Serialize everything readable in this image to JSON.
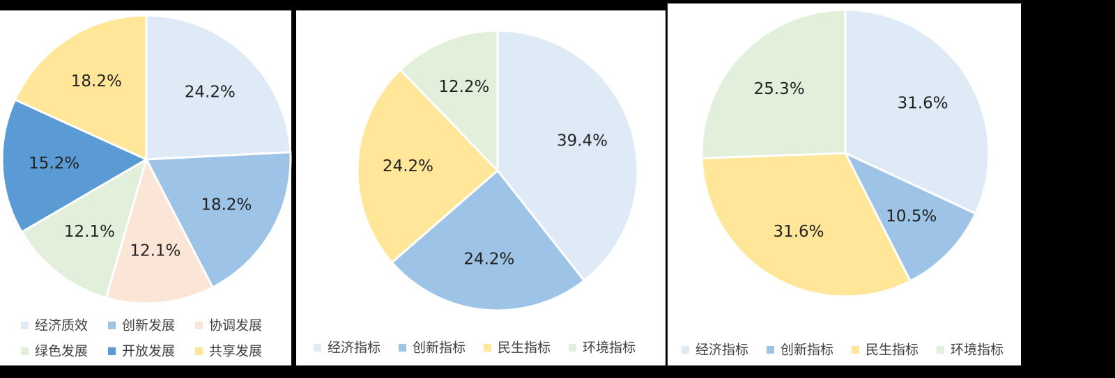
{
  "chart_data": [
    {
      "type": "pie",
      "categories": [
        "经济质效",
        "创新发展",
        "协调发展",
        "绿色发展",
        "开放发展",
        "共享发展"
      ],
      "values": [
        24.2,
        18.2,
        12.1,
        12.1,
        15.2,
        18.2
      ],
      "value_labels": [
        "24.2%",
        "18.2%",
        "12.1%",
        "12.1%",
        "15.2%",
        "18.2%"
      ],
      "colors": [
        "#deeaf6",
        "#9dc3e6",
        "#fbe5d6",
        "#e2efda",
        "#5b9bd5",
        "#ffe699"
      ]
    },
    {
      "type": "pie",
      "categories": [
        "经济指标",
        "创新指标",
        "民生指标",
        "环境指标"
      ],
      "values": [
        39.4,
        24.2,
        24.2,
        12.2
      ],
      "value_labels": [
        "39.4%",
        "24.2%",
        "24.2%",
        "12.2%"
      ],
      "colors": [
        "#deeaf6",
        "#9dc3e6",
        "#ffe699",
        "#e2efda"
      ]
    },
    {
      "type": "pie",
      "categories": [
        "经济指标",
        "创新指标",
        "民生指标",
        "环境指标"
      ],
      "values": [
        31.6,
        10.5,
        31.6,
        25.3
      ],
      "value_labels": [
        "31.6%",
        "10.5%",
        "31.6%",
        "25.3%"
      ],
      "colors": [
        "#deeaf6",
        "#9dc3e6",
        "#ffe699",
        "#e2efda"
      ]
    }
  ]
}
